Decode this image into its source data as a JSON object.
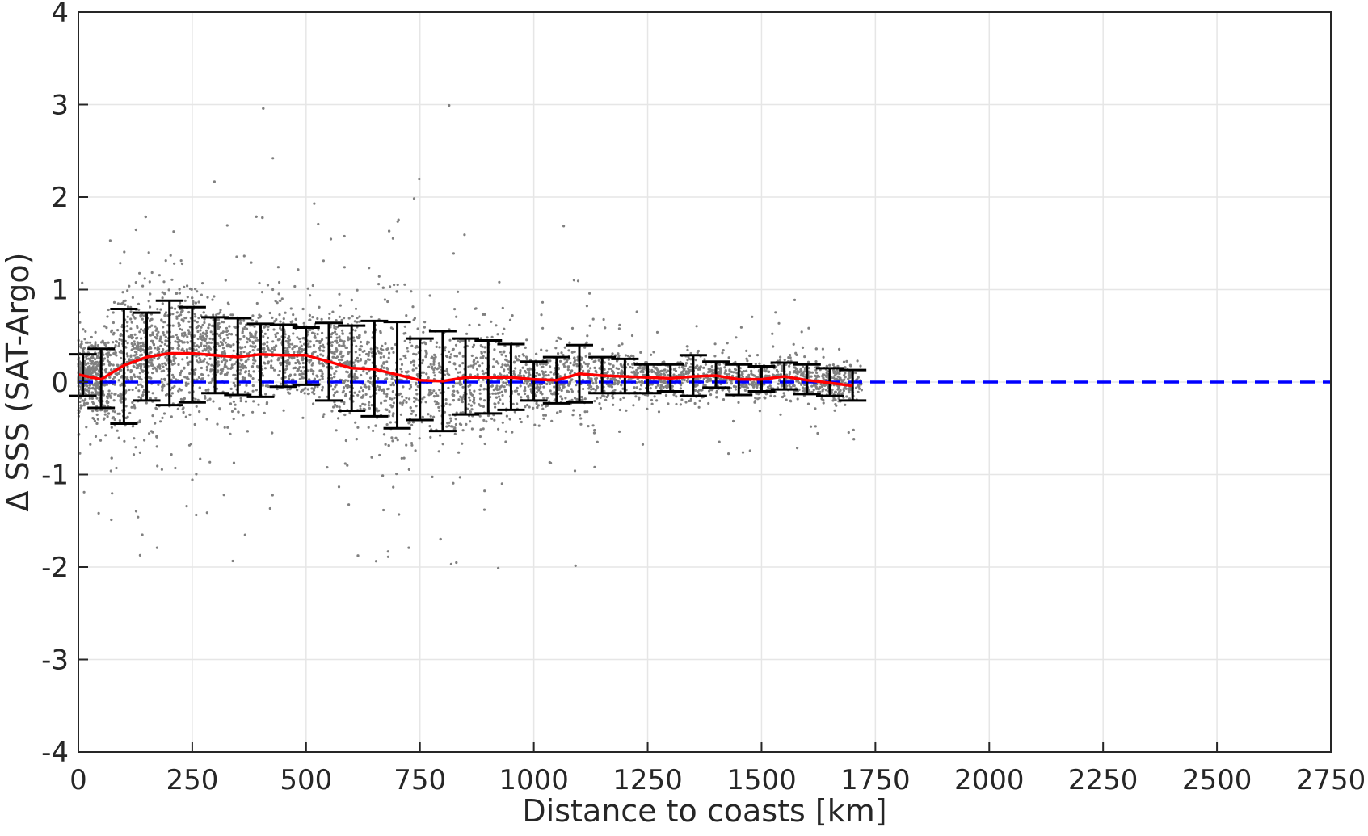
{
  "chart_data": {
    "type": "scatter",
    "xlabel": "Distance to coasts [km]",
    "ylabel": "Δ SSS (SAT-Argo)",
    "xlim": [
      0,
      2750
    ],
    "ylim": [
      -4,
      4
    ],
    "xticks": [
      0,
      250,
      500,
      750,
      1000,
      1250,
      1500,
      1750,
      2000,
      2250,
      2500,
      2750
    ],
    "yticks": [
      -4,
      -3,
      -2,
      -1,
      0,
      1,
      2,
      3,
      4
    ],
    "grid": true,
    "colors": {
      "scatter": "#808080",
      "mean_line": "#ff0000",
      "zero_line": "#0000ff",
      "error_bars": "#000000",
      "grid": "#e6e6e6",
      "axes": "#262626"
    },
    "scatter_cloud": {
      "x_range": [
        0,
        1720
      ],
      "typical_core_y": [
        -0.3,
        0.7
      ],
      "extreme_y": [
        -2.05,
        3.1
      ]
    },
    "error_bars": {
      "x": [
        10,
        50,
        100,
        150,
        200,
        250,
        300,
        350,
        400,
        450,
        500,
        550,
        600,
        650,
        700,
        750,
        800,
        850,
        900,
        950,
        1000,
        1050,
        1100,
        1150,
        1200,
        1250,
        1300,
        1350,
        1400,
        1450,
        1500,
        1550,
        1600,
        1650,
        1700
      ],
      "lower": [
        -0.15,
        -0.28,
        -0.45,
        -0.2,
        -0.25,
        -0.22,
        -0.12,
        -0.14,
        -0.16,
        -0.05,
        -0.03,
        -0.2,
        -0.31,
        -0.37,
        -0.5,
        -0.41,
        -0.53,
        -0.35,
        -0.34,
        -0.3,
        -0.2,
        -0.23,
        -0.22,
        -0.12,
        -0.12,
        -0.12,
        -0.1,
        -0.15,
        -0.06,
        -0.14,
        -0.1,
        -0.08,
        -0.13,
        -0.15,
        -0.2
      ],
      "upper": [
        0.3,
        0.36,
        0.79,
        0.75,
        0.88,
        0.81,
        0.7,
        0.69,
        0.63,
        0.62,
        0.59,
        0.64,
        0.61,
        0.66,
        0.65,
        0.47,
        0.55,
        0.47,
        0.45,
        0.41,
        0.22,
        0.27,
        0.4,
        0.27,
        0.25,
        0.19,
        0.19,
        0.29,
        0.22,
        0.19,
        0.17,
        0.21,
        0.19,
        0.15,
        0.13
      ]
    },
    "series": [
      {
        "x": [
          0,
          50,
          100,
          150,
          200,
          250,
          300,
          350,
          400,
          450,
          500,
          550,
          600,
          650,
          700,
          750,
          800,
          850,
          900,
          950,
          1000,
          1050,
          1100,
          1150,
          1200,
          1250,
          1300,
          1350,
          1400,
          1450,
          1500,
          1550,
          1600,
          1650,
          1700
        ],
        "values": [
          0.08,
          0.03,
          0.18,
          0.27,
          0.31,
          0.31,
          0.29,
          0.27,
          0.3,
          0.29,
          0.29,
          0.22,
          0.15,
          0.14,
          0.08,
          0.02,
          0.01,
          0.05,
          0.05,
          0.05,
          0.03,
          0.02,
          0.09,
          0.07,
          0.06,
          0.05,
          0.04,
          0.06,
          0.07,
          0.03,
          0.03,
          0.06,
          0.02,
          -0.01,
          -0.04
        ]
      },
      {
        "x": [
          0,
          2750
        ],
        "values": [
          0,
          0
        ]
      }
    ]
  }
}
